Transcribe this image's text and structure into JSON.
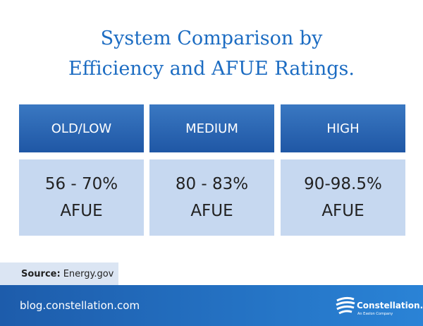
{
  "header": {
    "title_lines": [
      "System Comparison by",
      "Efficiency and AFUE Ratings."
    ]
  },
  "table": {
    "columns": [
      {
        "header": "OLD/LOW",
        "value_lines": [
          "56 - 70%",
          "AFUE"
        ]
      },
      {
        "header": "MEDIUM",
        "value_lines": [
          "80 - 83%",
          "AFUE"
        ]
      },
      {
        "header": "HIGH",
        "value_lines": [
          "90-98.5%",
          "AFUE"
        ]
      }
    ]
  },
  "source": {
    "label": "Source:",
    "text": "Energy.gov"
  },
  "footer": {
    "url": "blog.constellation.com",
    "logo_name": "Constellation.",
    "logo_tagline": "An Exelon Company"
  }
}
